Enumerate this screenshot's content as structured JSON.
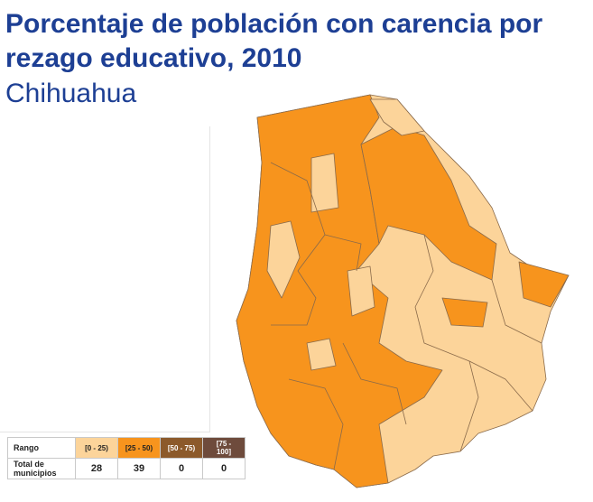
{
  "title": "Porcentaje de población con carencia por rezago educativo, 2010",
  "subtitle": "Chihuahua",
  "legend": {
    "row_header": "Rango",
    "count_header": "Total de municipios",
    "ranges": [
      "[0 - 25)",
      "[25 - 50)",
      "[50 - 75)",
      "[75 - 100]"
    ],
    "colors": [
      "#fcd49a",
      "#f7941d",
      "#8c5a2b",
      "#6e4b3c"
    ],
    "counts": [
      28,
      39,
      0,
      0
    ]
  }
}
